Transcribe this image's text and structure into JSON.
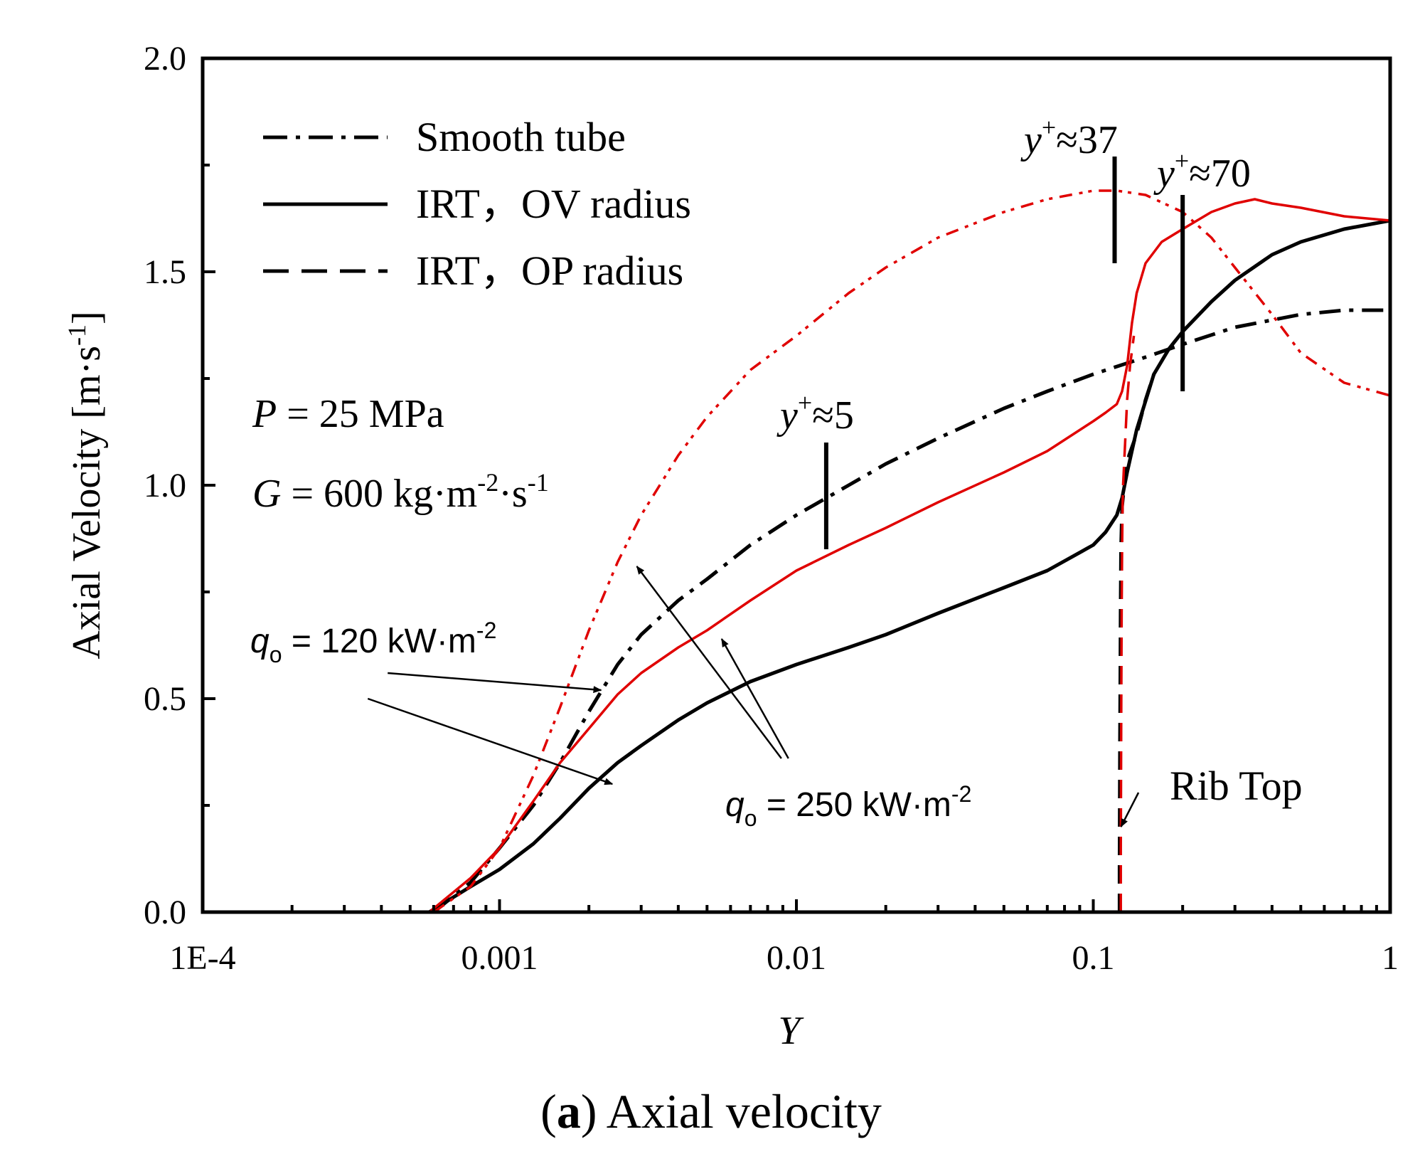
{
  "chart_data": {
    "type": "line",
    "caption_bold": "a",
    "caption_rest": "Axial velocity",
    "xlabel": "Y",
    "ylabel": "Axial Velocity [m·s",
    "ylabel_sup": "-1",
    "ylabel_tail": "]",
    "xscale": "log",
    "xlim": [
      0.0001,
      1
    ],
    "ylim": [
      0,
      2.0
    ],
    "x_ticks": [
      {
        "value": 0.0001,
        "label": "1E-4"
      },
      {
        "value": 0.001,
        "label": "0.001"
      },
      {
        "value": 0.01,
        "label": "0.01"
      },
      {
        "value": 0.1,
        "label": "0.1"
      },
      {
        "value": 1,
        "label": "1"
      }
    ],
    "y_ticks": [
      {
        "value": 0,
        "label": "0.0"
      },
      {
        "value": 0.5,
        "label": "0.5"
      },
      {
        "value": 1.0,
        "label": "1.0"
      },
      {
        "value": 1.5,
        "label": "1.5"
      },
      {
        "value": 2.0,
        "label": "2.0"
      }
    ],
    "legend": [
      {
        "label": "Smooth tube",
        "style": "dashdot"
      },
      {
        "label": "IRT，OV radius",
        "style": "solid"
      },
      {
        "label": "IRT，OP radius",
        "style": "dashed"
      }
    ],
    "conditions": {
      "p_sym": "P",
      "p_rest": " = 25 MPa",
      "g_sym": "G",
      "g_rest": " = 600 kg·m",
      "g_sup1": "-2",
      "g_mid": "·s",
      "g_sup2": "-1"
    },
    "yplus_labels": [
      {
        "base": "y",
        "sup": "+",
        "rest": "≈5",
        "x": 0.0126,
        "y0": 0.85,
        "y1": 1.1
      },
      {
        "base": "y",
        "sup": "+",
        "rest": "≈37",
        "x": 0.118,
        "y0": 1.52,
        "y1": 1.77
      },
      {
        "base": "y",
        "sup": "+",
        "rest": "≈70",
        "x": 0.2,
        "y0": 1.22,
        "y1": 1.68
      }
    ],
    "heat_flux_labels": [
      {
        "sym": "q",
        "sub": "o",
        "rest": " = 120 kW·m",
        "sup": "-2"
      },
      {
        "sym": "q",
        "sub": "o",
        "rest": " = 250 kW·m",
        "sup": "-2"
      }
    ],
    "rib_top_label": "Rib Top",
    "series": [
      {
        "name": "Smooth tube (q = 120 kW/m2)",
        "color": "#000000",
        "style": "dashdot",
        "x": [
          0.0006,
          0.0008,
          0.001,
          0.0013,
          0.0016,
          0.002,
          0.0025,
          0.003,
          0.004,
          0.005,
          0.007,
          0.01,
          0.015,
          0.02,
          0.03,
          0.05,
          0.07,
          0.1,
          0.15,
          0.2,
          0.3,
          0.5,
          0.7,
          1.0
        ],
        "y": [
          0.0,
          0.07,
          0.15,
          0.25,
          0.35,
          0.47,
          0.58,
          0.65,
          0.73,
          0.78,
          0.86,
          0.93,
          1.0,
          1.05,
          1.11,
          1.18,
          1.22,
          1.26,
          1.3,
          1.33,
          1.37,
          1.4,
          1.41,
          1.41
        ]
      },
      {
        "name": "IRT OV radius (q = 120 kW/m2)",
        "color": "#000000",
        "style": "solid",
        "x": [
          0.00058,
          0.0008,
          0.001,
          0.0013,
          0.0016,
          0.002,
          0.0025,
          0.003,
          0.004,
          0.005,
          0.007,
          0.01,
          0.015,
          0.02,
          0.03,
          0.05,
          0.07,
          0.1,
          0.11,
          0.12,
          0.125,
          0.13,
          0.14,
          0.16,
          0.18,
          0.2,
          0.25,
          0.3,
          0.4,
          0.5,
          0.7,
          1.0
        ],
        "y": [
          0.0,
          0.06,
          0.1,
          0.16,
          0.22,
          0.29,
          0.35,
          0.39,
          0.45,
          0.49,
          0.54,
          0.58,
          0.62,
          0.65,
          0.7,
          0.76,
          0.8,
          0.86,
          0.89,
          0.93,
          0.97,
          1.03,
          1.13,
          1.26,
          1.32,
          1.36,
          1.43,
          1.48,
          1.54,
          1.57,
          1.6,
          1.62
        ]
      },
      {
        "name": "IRT OP radius (q = 120 kW/m2)",
        "color": "#000000",
        "style": "dashed",
        "x": [
          0.1226,
          0.1226,
          0.1228,
          0.123,
          0.1233,
          0.1236,
          0.124,
          0.125,
          0.128,
          0.132,
          0.14,
          0.15,
          0.16
        ],
        "y": [
          0.0,
          0.1,
          0.25,
          0.4,
          0.55,
          0.7,
          0.85,
          0.95,
          1.02,
          1.07,
          1.12,
          1.2,
          1.26
        ]
      },
      {
        "name": "Smooth tube (q = 250 kW/m2)",
        "color": "#e00000",
        "style": "dashdotdot",
        "x": [
          0.0006,
          0.0008,
          0.001,
          0.0013,
          0.0016,
          0.002,
          0.0025,
          0.003,
          0.004,
          0.005,
          0.007,
          0.01,
          0.015,
          0.02,
          0.03,
          0.05,
          0.07,
          0.1,
          0.12,
          0.15,
          0.2,
          0.25,
          0.3,
          0.4,
          0.5,
          0.7,
          1.0
        ],
        "y": [
          0.0,
          0.06,
          0.15,
          0.32,
          0.48,
          0.66,
          0.82,
          0.93,
          1.07,
          1.16,
          1.27,
          1.35,
          1.45,
          1.51,
          1.58,
          1.64,
          1.67,
          1.69,
          1.69,
          1.68,
          1.64,
          1.58,
          1.51,
          1.4,
          1.31,
          1.24,
          1.21
        ]
      },
      {
        "name": "IRT OV radius (q = 250 kW/m2)",
        "color": "#e00000",
        "style": "solid",
        "x": [
          0.00058,
          0.0008,
          0.001,
          0.0013,
          0.0016,
          0.002,
          0.0025,
          0.003,
          0.004,
          0.005,
          0.007,
          0.01,
          0.015,
          0.02,
          0.03,
          0.05,
          0.07,
          0.1,
          0.11,
          0.12,
          0.125,
          0.13,
          0.135,
          0.14,
          0.15,
          0.17,
          0.2,
          0.25,
          0.3,
          0.35,
          0.4,
          0.5,
          0.7,
          1.0
        ],
        "y": [
          0.0,
          0.08,
          0.15,
          0.26,
          0.35,
          0.43,
          0.51,
          0.56,
          0.62,
          0.66,
          0.73,
          0.8,
          0.86,
          0.9,
          0.96,
          1.03,
          1.08,
          1.15,
          1.17,
          1.19,
          1.22,
          1.28,
          1.38,
          1.45,
          1.52,
          1.57,
          1.6,
          1.64,
          1.66,
          1.67,
          1.66,
          1.65,
          1.63,
          1.62
        ]
      },
      {
        "name": "IRT OP radius (q = 250 kW/m2)",
        "color": "#e00000",
        "style": "dashed",
        "x": [
          0.1238,
          0.1238,
          0.124,
          0.1243,
          0.1246,
          0.125,
          0.1255,
          0.126,
          0.128,
          0.13,
          0.133,
          0.137
        ],
        "y": [
          0.0,
          0.15,
          0.3,
          0.5,
          0.7,
          0.85,
          0.95,
          1.0,
          1.1,
          1.2,
          1.28,
          1.35
        ]
      }
    ],
    "arrows": [
      {
        "from": [
          0.00042,
          0.56
        ],
        "to": [
          0.0022,
          0.52
        ]
      },
      {
        "from": [
          0.00036,
          0.5
        ],
        "to": [
          0.0024,
          0.3
        ]
      },
      {
        "from": [
          0.0089,
          0.36
        ],
        "to": [
          0.0029,
          0.81
        ]
      },
      {
        "from": [
          0.0094,
          0.36
        ],
        "to": [
          0.0056,
          0.64
        ]
      },
      {
        "from": [
          0.142,
          0.28
        ],
        "to": [
          0.124,
          0.2
        ]
      }
    ]
  }
}
